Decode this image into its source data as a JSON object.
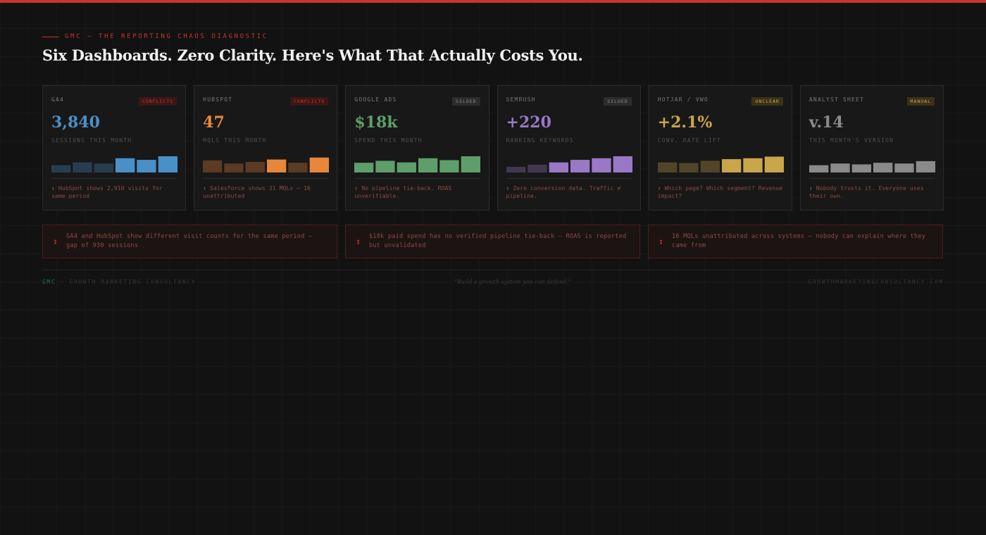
{
  "header": {
    "eyebrow": "GMC — THE REPORTING CHAOS DIAGNOSTIC",
    "title": "Six Dashboards. Zero Clarity. Here's What That Actually Costs You."
  },
  "colors": {
    "accent": "#c8352c",
    "background": "#121212"
  },
  "cards": [
    {
      "name": "GA4",
      "badge": "CONFLICTS",
      "badge_bg": "#3b1715",
      "badge_fg": "#c8352c",
      "value": "3,840",
      "value_color": "#4a90c8",
      "metric": "SESSIONS THIS MONTH",
      "bar_color": "#4a90c8",
      "bars": [
        0.45,
        0.62,
        0.55,
        0.88,
        0.78,
        1.0
      ],
      "bar_strong": [
        false,
        false,
        false,
        true,
        true,
        true
      ],
      "note": "↕ HubSpot shows 2,910 visits for same period"
    },
    {
      "name": "HUBSPOT",
      "badge": "CONFLICTS",
      "badge_bg": "#3b1715",
      "badge_fg": "#c8352c",
      "value": "47",
      "value_color": "#e8873a",
      "metric": "MQLS THIS MONTH",
      "bar_color": "#e8873a",
      "bars": [
        0.75,
        0.55,
        0.65,
        0.8,
        0.6,
        0.92
      ],
      "bar_strong": [
        false,
        false,
        false,
        true,
        false,
        true
      ],
      "note": "↕ Salesforce shows 31 MQLs — 16 unattributed"
    },
    {
      "name": "GOOGLE ADS",
      "badge": "SILOED",
      "badge_bg": "#2c2c2c",
      "badge_fg": "#888888",
      "value": "$18k",
      "value_color": "#5e9e6a",
      "metric": "SPEND THIS MONTH",
      "bar_color": "#5e9e6a",
      "bars": [
        0.6,
        0.72,
        0.62,
        0.88,
        0.76,
        1.0
      ],
      "bar_strong": [
        true,
        true,
        true,
        true,
        true,
        true
      ],
      "note": "↕ No pipeline tie-back. ROAS unverifiable."
    },
    {
      "name": "SEMRUSH",
      "badge": "SILOED",
      "badge_bg": "#2c2c2c",
      "badge_fg": "#888888",
      "value": "+220",
      "value_color": "#9a78c8",
      "metric": "RANKING KEYWORDS",
      "bar_color": "#9a78c8",
      "bars": [
        0.35,
        0.48,
        0.62,
        0.78,
        0.88,
        1.0
      ],
      "bar_strong": [
        false,
        false,
        true,
        true,
        true,
        true
      ],
      "note": "↕ Zero conversion data. Traffic ≠ pipeline."
    },
    {
      "name": "HOTJAR / VWO",
      "badge": "UNCLEAR",
      "badge_bg": "#3a3218",
      "badge_fg": "#c9a64a",
      "value": "+2.1%",
      "value_color": "#c9a64a",
      "metric": "CONV. RATE LIFT",
      "bar_color": "#c9a64a",
      "bars": [
        0.62,
        0.58,
        0.72,
        0.82,
        0.88,
        0.98
      ],
      "bar_strong": [
        false,
        false,
        false,
        true,
        true,
        true
      ],
      "note": "↕ Which page? Which segment? Revenue impact?"
    },
    {
      "name": "ANALYST SHEET",
      "badge": "MANUAL",
      "badge_bg": "#3a3218",
      "badge_fg": "#c9a64a",
      "value": "v.14",
      "value_color": "#8a8a8a",
      "metric": "THIS MONTH'S VERSION",
      "bar_color": "#8a8a8a",
      "bars": [
        0.45,
        0.55,
        0.5,
        0.6,
        0.55,
        0.7
      ],
      "bar_strong": [
        true,
        true,
        true,
        true,
        true,
        true
      ],
      "note": "↕ Nobody trusts it. Everyone uses their own."
    }
  ],
  "alerts": [
    {
      "icon": "↕",
      "text": "GA4 and HubSpot show different visit counts for the same period — gap of 930 sessions"
    },
    {
      "icon": "↕",
      "text": "$18k paid spend has no verified pipeline tie-back — ROAS is reported but unvalidated"
    },
    {
      "icon": "↕",
      "text": "16 MQLs unattributed across systems — nobody can explain where they came from"
    }
  ],
  "footer": {
    "brand": "GMC",
    "brand_rest": " — GROWTH MARKETING CONSULTANCY",
    "tagline": "\"Build a growth system you can defend.\"",
    "url": "GROWTHMARKETINGCONSULTANCY.COM"
  }
}
